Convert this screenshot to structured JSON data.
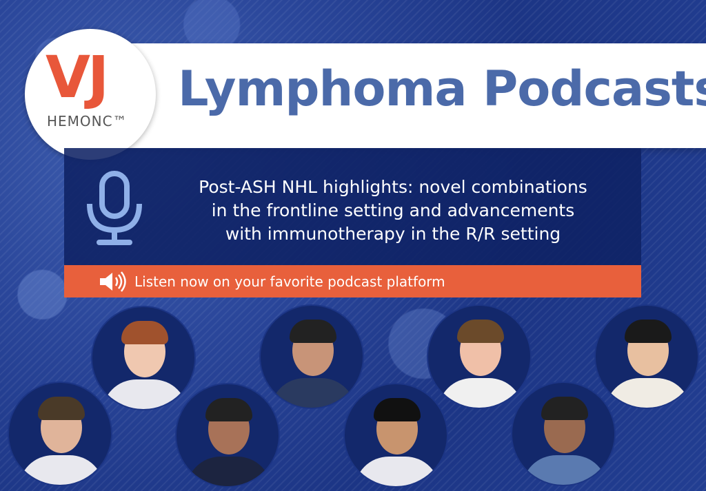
{
  "logo": {
    "text": "VJ HEMONC",
    "mark": "VJ",
    "sub": "HEMONC™"
  },
  "title": "Lymphoma Podcasts",
  "description": {
    "lines": [
      "Post-ASH NHL highlights: novel combinations",
      "in the frontline setting and advancements",
      "with immunotherapy in the R/R setting"
    ]
  },
  "cta": {
    "label": "Listen now on your favorite podcast platform",
    "icon": "speaker-icon"
  },
  "icons": {
    "mic": "microphone-icon"
  },
  "colors": {
    "title": "#4b6aa9",
    "accent": "#e8603c",
    "logo": "#e8573a",
    "panel": "#0f2264"
  },
  "speakers_count": 8
}
